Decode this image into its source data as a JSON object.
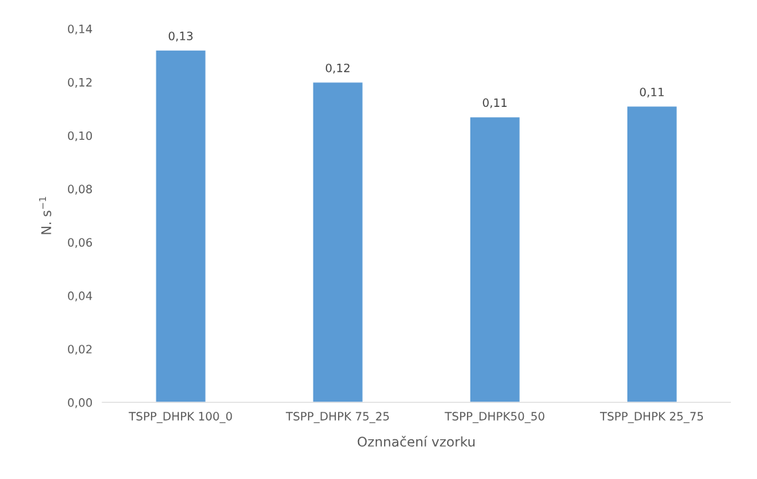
{
  "chart_data": {
    "type": "bar",
    "xlabel": "Oznnačení vzorku",
    "ylabel": "N. s$^{−1}$",
    "categories": [
      "TSPP_DHPK 100_0",
      "TSPP_DHPK 75_25",
      "TSPP_DHPK50_50",
      "TSPP_DHPK 25_75"
    ],
    "values": [
      0.132,
      0.12,
      0.107,
      0.111
    ],
    "value_labels": [
      "0,13",
      "0,12",
      "0,11",
      "0,11"
    ],
    "color": "#5b9bd5",
    "ylim": [
      0,
      0.14
    ],
    "yticks": [
      {
        "value": 0,
        "label": "0,00"
      },
      {
        "value": 0.02,
        "label": "0,02"
      },
      {
        "value": 0.04,
        "label": "0,04"
      },
      {
        "value": 0.06,
        "label": "0,06"
      },
      {
        "value": 0.08,
        "label": "0,08"
      },
      {
        "value": 0.1,
        "label": "0,10"
      },
      {
        "value": 0.12,
        "label": "0,12"
      },
      {
        "value": 0.14,
        "label": "0,14"
      }
    ],
    "grid": false
  }
}
